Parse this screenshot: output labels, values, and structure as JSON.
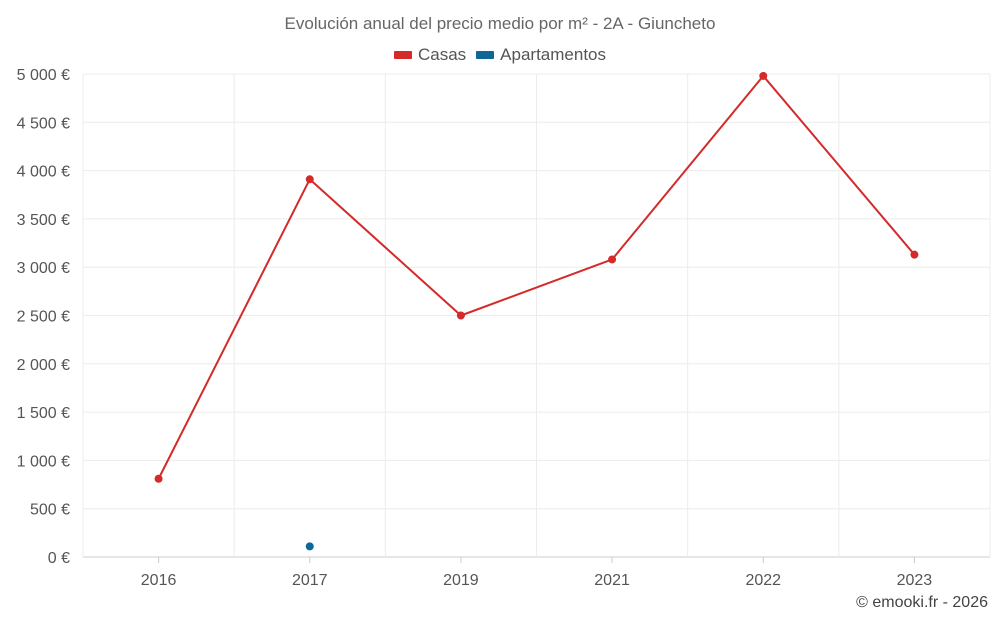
{
  "chart_data": {
    "type": "line",
    "title": "Evolución anual del precio medio por m² - 2A - Giuncheto",
    "categories": [
      "2016",
      "2017",
      "2019",
      "2021",
      "2022",
      "2023"
    ],
    "series": [
      {
        "name": "Casas",
        "color": "#d42a2a",
        "values": [
          810,
          3910,
          2500,
          3080,
          4980,
          3130
        ]
      },
      {
        "name": "Apartamentos",
        "color": "#0e6796",
        "values": [
          null,
          110,
          null,
          null,
          null,
          null
        ]
      }
    ],
    "yticks": [
      "0 €",
      "500 €",
      "1 000 €",
      "1 500 €",
      "2 000 €",
      "2 500 €",
      "3 000 €",
      "3 500 €",
      "4 000 €",
      "4 500 €",
      "5 000 €"
    ],
    "ylim": [
      0,
      5000
    ],
    "grid": true,
    "legend_position": "top-center"
  },
  "credit": "© emooki.fr - 2026"
}
